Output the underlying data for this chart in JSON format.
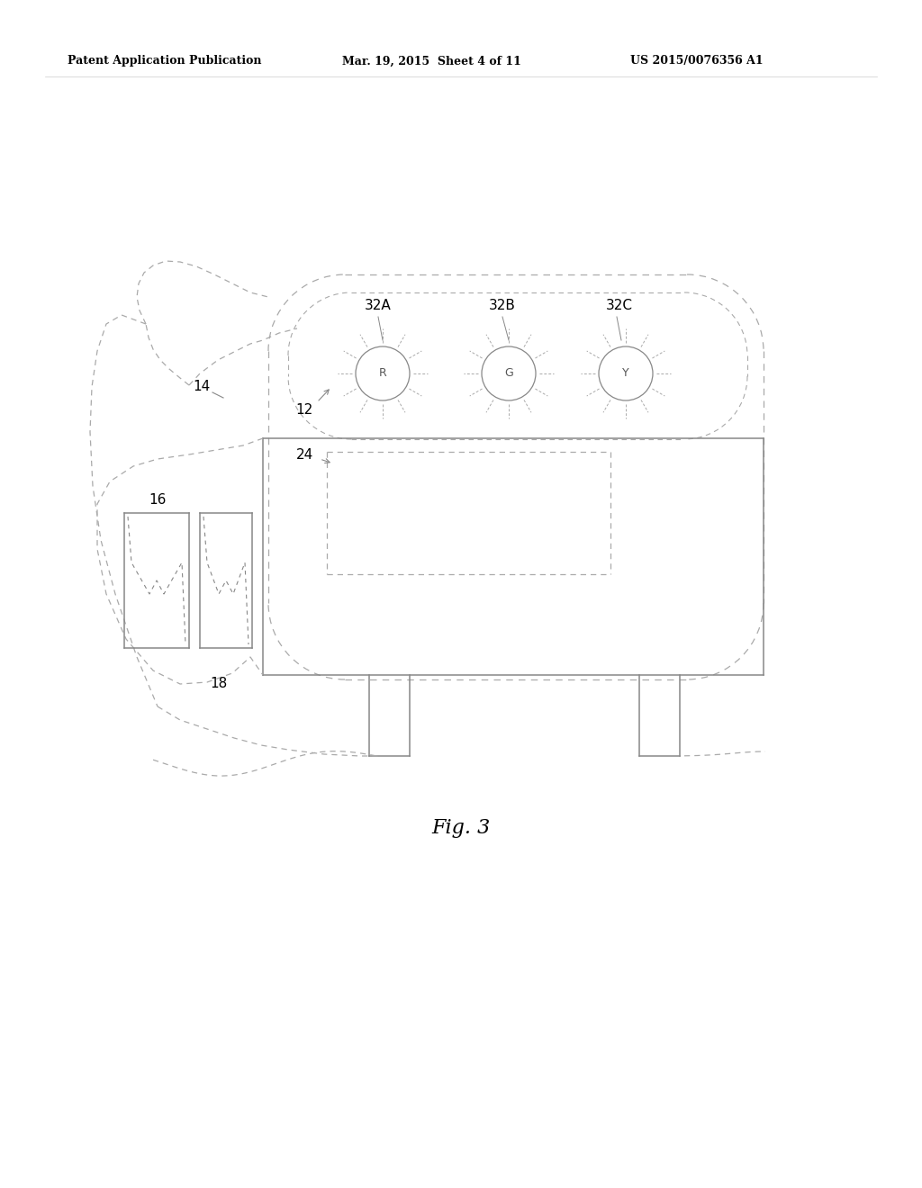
{
  "header_left": "Patent Application Publication",
  "header_mid": "Mar. 19, 2015  Sheet 4 of 11",
  "header_right": "US 2015/0076356 A1",
  "fig_label": "Fig. 3",
  "bg_color": "#ffffff",
  "text_color": "#000000",
  "line_color": "#888888",
  "dash_color": "#aaaaaa"
}
